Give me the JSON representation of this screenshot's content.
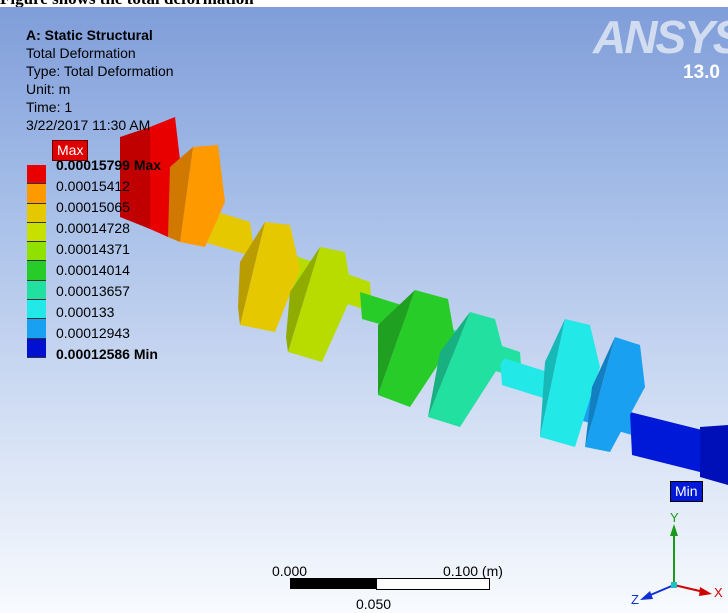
{
  "caption": "Figure shows the total deformation",
  "info": {
    "analysis": "A: Static Structural",
    "result": "Total Deformation",
    "type": "Type: Total Deformation",
    "unit": "Unit: m",
    "time": "Time: 1",
    "date": "3/22/2017 11:30 AM"
  },
  "logo": {
    "brand": "ANSYS",
    "version": "13.0"
  },
  "legend": {
    "labels": [
      "0.00015799 Max",
      "0.00015412",
      "0.00015065",
      "0.00014728",
      "0.00014371",
      "0.00014014",
      "0.00013657",
      "0.000133",
      "0.00012943",
      "0.00012586 Min"
    ],
    "colors": [
      "#e80000",
      "#ff9900",
      "#e5c800",
      "#c7e000",
      "#90e000",
      "#28cc28",
      "#22e0a0",
      "#22e8e8",
      "#1aa0f0",
      "#0010d0"
    ]
  },
  "tags": {
    "max": "Max",
    "min": "Min"
  },
  "scale": {
    "left": "0.000",
    "right": "0.100 (m)",
    "mid": "0.050"
  },
  "triad": {
    "x": "X",
    "y": "Y",
    "z": "Z"
  }
}
